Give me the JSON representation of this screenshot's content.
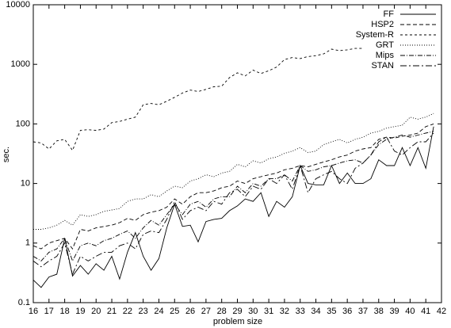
{
  "chart_data": {
    "type": "line",
    "log_y": true,
    "legend": "upper right",
    "xlabel": "problem size",
    "ylabel": "sec.",
    "xlim": [
      16,
      42
    ],
    "xticks": [
      16,
      17,
      18,
      19,
      20,
      21,
      22,
      23,
      24,
      25,
      26,
      27,
      28,
      29,
      30,
      31,
      32,
      33,
      34,
      35,
      36,
      37,
      38,
      39,
      40,
      41,
      42
    ],
    "ylim": [
      0.1,
      10000
    ],
    "yticks": [
      0.1,
      1,
      10,
      100,
      1000,
      10000
    ],
    "x": [
      16,
      16.5,
      17,
      17.5,
      18,
      18.5,
      19,
      19.5,
      20,
      20.5,
      21,
      21.5,
      22,
      22.5,
      23,
      23.5,
      24,
      24.5,
      25,
      25.5,
      26,
      26.5,
      27,
      27.5,
      28,
      28.5,
      29,
      29.5,
      30,
      30.5,
      31,
      31.5,
      32,
      32.5,
      33,
      33.5,
      34,
      34.5,
      35,
      35.5,
      36,
      36.5,
      37,
      37.5,
      38,
      38.5,
      39,
      39.5,
      40,
      40.5,
      41,
      41.5
    ],
    "series": [
      {
        "name": "FF",
        "color": "#000000",
        "values": [
          0.24,
          0.18,
          0.27,
          0.3,
          1.2,
          0.28,
          0.42,
          0.3,
          0.45,
          0.35,
          0.6,
          0.25,
          0.7,
          1.5,
          0.6,
          0.35,
          0.55,
          1.8,
          4.5,
          1.9,
          2.0,
          1.05,
          2.3,
          2.5,
          2.6,
          3.5,
          4.2,
          5.5,
          5.0,
          7,
          2.8,
          5,
          4,
          6,
          20,
          10,
          9.5,
          9.5,
          20,
          10,
          15,
          10,
          10,
          12,
          25,
          20,
          20,
          40,
          20,
          40,
          18,
          90
        ]
      },
      {
        "name": "HSP2",
        "color": "#000000",
        "values": [
          0.9,
          0.8,
          1.0,
          1.1,
          1.2,
          0.8,
          1.7,
          1.6,
          1.8,
          1.9,
          2.0,
          2.2,
          2.6,
          2.4,
          3.0,
          3.3,
          3.5,
          4.0,
          5.5,
          4.5,
          6,
          7,
          7,
          7.5,
          8.5,
          9,
          11,
          10,
          12,
          13,
          14,
          15,
          17,
          18,
          20,
          19,
          21,
          23,
          25,
          28,
          30,
          35,
          38,
          40,
          55,
          60,
          58,
          62,
          65,
          70,
          90,
          100
        ]
      },
      {
        "name": "System-R",
        "color": "#000000",
        "values": [
          50,
          48,
          38,
          52,
          55,
          36,
          78,
          80,
          78,
          82,
          105,
          110,
          120,
          130,
          210,
          220,
          210,
          240,
          280,
          330,
          370,
          350,
          380,
          420,
          430,
          600,
          720,
          640,
          800,
          700,
          780,
          900,
          1200,
          1300,
          1250,
          1350,
          1400,
          1500,
          1800,
          1700,
          1750,
          1850,
          1850,
          null,
          null,
          null,
          null,
          null,
          null,
          null,
          null,
          null
        ]
      },
      {
        "name": "GRT",
        "color": "#000000",
        "values": [
          1.7,
          1.7,
          1.8,
          2.0,
          2.4,
          2.0,
          3.0,
          2.8,
          3.0,
          3.4,
          3.6,
          3.8,
          5.0,
          5.5,
          5.5,
          6.5,
          6.0,
          7.5,
          9,
          8.5,
          11,
          12,
          14,
          13,
          15,
          16,
          21,
          19,
          24,
          22,
          26,
          28,
          32,
          35,
          40,
          33,
          35,
          45,
          50,
          55,
          48,
          55,
          60,
          70,
          75,
          85,
          90,
          95,
          130,
          120,
          130,
          150
        ]
      },
      {
        "name": "Mips",
        "color": "#000000",
        "values": [
          0.6,
          0.5,
          0.7,
          0.8,
          1.2,
          0.5,
          0.9,
          1.0,
          0.9,
          1.1,
          1.2,
          1.4,
          1.6,
          1.2,
          1.8,
          2.4,
          2.0,
          3.0,
          4.5,
          3.0,
          4.5,
          5,
          4,
          5.5,
          6,
          6,
          9,
          7,
          10,
          9,
          12,
          12,
          14,
          11,
          20,
          16,
          17,
          19,
          20,
          22,
          24,
          25,
          22,
          30,
          45,
          55,
          60,
          65,
          60,
          65,
          70,
          75
        ]
      },
      {
        "name": "STAN",
        "color": "#000000",
        "values": [
          0.5,
          0.4,
          0.5,
          0.6,
          1.0,
          0.3,
          0.6,
          0.5,
          0.6,
          0.7,
          0.7,
          0.9,
          1.0,
          0.8,
          1.4,
          1.6,
          1.5,
          2.5,
          5,
          2.5,
          3.5,
          4,
          3.5,
          5,
          4.5,
          7,
          8,
          6,
          9,
          8,
          12,
          10,
          14,
          8,
          20,
          7,
          12,
          14,
          16,
          12,
          10,
          18,
          22,
          30,
          50,
          60,
          35,
          30,
          40,
          50,
          50,
          70
        ]
      }
    ]
  }
}
